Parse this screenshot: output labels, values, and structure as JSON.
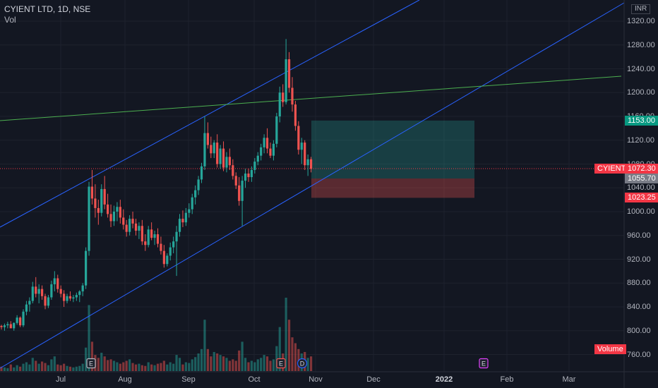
{
  "header": {
    "title": "CYIENT LTD, 1D, NSE",
    "volume_label": "Vol"
  },
  "currency": "INR",
  "price_axis": {
    "ticks": [
      "1320.00",
      "1280.00",
      "1240.00",
      "1200.00",
      "1160.00",
      "1120.00",
      "1080.00",
      "1040.00",
      "1000.00",
      "960.00",
      "920.00",
      "880.00",
      "840.00",
      "800.00",
      "760.00"
    ],
    "tick_values": [
      1320,
      1280,
      1240,
      1200,
      1160,
      1120,
      1080,
      1040,
      1000,
      960,
      920,
      880,
      840,
      800,
      760
    ]
  },
  "time_axis": {
    "labels": [
      "Jul",
      "Aug",
      "Sep",
      "Oct",
      "Nov",
      "Dec",
      "2022",
      "Feb",
      "Mar"
    ],
    "bold": [
      false,
      false,
      false,
      false,
      false,
      false,
      true,
      false,
      false
    ]
  },
  "price_tags": {
    "target": {
      "label": "1153.00",
      "value": 1153.0,
      "color": "#089981"
    },
    "symbol": {
      "label": "CYIENT",
      "color": "#f23645"
    },
    "last": {
      "label": "1072.30",
      "value": 1072.3,
      "color": "#f23645"
    },
    "entry": {
      "label": "1055.70",
      "value": 1055.7,
      "color": "#787b86"
    },
    "stop": {
      "label": "1023.25",
      "value": 1023.25,
      "color": "#f23645"
    }
  },
  "volume_tag": {
    "label": "Volume",
    "color": "#f23645"
  },
  "event_markers": [
    {
      "label": "E",
      "type": "earnings"
    },
    {
      "label": "E",
      "type": "earnings"
    },
    {
      "label": "D",
      "type": "dividend"
    },
    {
      "label": "E",
      "type": "earnings-upcoming"
    }
  ],
  "colors": {
    "background": "#131722",
    "up": "#26a69a",
    "down": "#ef5350",
    "channel": "#2962ff",
    "trend": "#4caf50"
  },
  "chart_data": {
    "type": "candlestick",
    "symbol": "CYIENT LTD",
    "interval": "1D",
    "exchange": "NSE",
    "candles": [
      [
        808,
        810,
        802,
        806
      ],
      [
        806,
        812,
        800,
        809
      ],
      [
        809,
        815,
        804,
        811
      ],
      [
        811,
        816,
        806,
        804
      ],
      [
        804,
        814,
        800,
        813
      ],
      [
        813,
        826,
        810,
        822
      ],
      [
        822,
        824,
        806,
        809
      ],
      [
        809,
        836,
        806,
        832
      ],
      [
        832,
        850,
        826,
        844
      ],
      [
        844,
        856,
        832,
        850
      ],
      [
        850,
        882,
        846,
        874
      ],
      [
        874,
        890,
        856,
        862
      ],
      [
        862,
        878,
        846,
        870
      ],
      [
        870,
        876,
        852,
        858
      ],
      [
        858,
        862,
        836,
        842
      ],
      [
        842,
        860,
        838,
        856
      ],
      [
        856,
        884,
        852,
        878
      ],
      [
        878,
        900,
        866,
        888
      ],
      [
        888,
        894,
        864,
        870
      ],
      [
        870,
        876,
        856,
        862
      ],
      [
        862,
        868,
        840,
        850
      ],
      [
        850,
        862,
        846,
        858
      ],
      [
        858,
        866,
        850,
        854
      ],
      [
        854,
        860,
        848,
        856
      ],
      [
        856,
        864,
        850,
        860
      ],
      [
        860,
        868,
        848,
        866
      ],
      [
        866,
        880,
        858,
        876
      ],
      [
        876,
        940,
        870,
        934
      ],
      [
        934,
        1050,
        926,
        1042
      ],
      [
        1042,
        1070,
        1012,
        1022
      ],
      [
        1022,
        1046,
        990,
        1006
      ],
      [
        1006,
        1020,
        978,
        998
      ],
      [
        998,
        1046,
        992,
        1038
      ],
      [
        1038,
        1060,
        1004,
        1012
      ],
      [
        1012,
        1030,
        990,
        996
      ],
      [
        996,
        1012,
        974,
        984
      ],
      [
        984,
        1010,
        976,
        1000
      ],
      [
        1000,
        1016,
        984,
        1008
      ],
      [
        1008,
        1020,
        980,
        990
      ],
      [
        990,
        1004,
        970,
        978
      ],
      [
        978,
        986,
        958,
        966
      ],
      [
        966,
        994,
        960,
        988
      ],
      [
        988,
        1000,
        972,
        980
      ],
      [
        980,
        988,
        960,
        968
      ],
      [
        968,
        982,
        954,
        976
      ],
      [
        976,
        986,
        944,
        950
      ],
      [
        950,
        962,
        934,
        944
      ],
      [
        944,
        976,
        940,
        970
      ],
      [
        970,
        982,
        952,
        956
      ],
      [
        956,
        968,
        944,
        962
      ],
      [
        962,
        972,
        940,
        946
      ],
      [
        946,
        958,
        928,
        934
      ],
      [
        934,
        944,
        906,
        912
      ],
      [
        912,
        930,
        908,
        926
      ],
      [
        926,
        948,
        918,
        940
      ],
      [
        940,
        958,
        930,
        950
      ],
      [
        950,
        976,
        892,
        966
      ],
      [
        966,
        996,
        958,
        988
      ],
      [
        988,
        1002,
        974,
        982
      ],
      [
        982,
        1006,
        976,
        998
      ],
      [
        998,
        1014,
        990,
        1004
      ],
      [
        1004,
        1030,
        996,
        1024
      ],
      [
        1024,
        1044,
        1012,
        1036
      ],
      [
        1036,
        1060,
        1028,
        1054
      ],
      [
        1054,
        1082,
        1048,
        1076
      ],
      [
        1076,
        1160,
        1070,
        1132
      ],
      [
        1132,
        1150,
        1106,
        1112
      ],
      [
        1112,
        1126,
        1090,
        1098
      ],
      [
        1098,
        1120,
        1090,
        1116
      ],
      [
        1116,
        1130,
        1074,
        1080
      ],
      [
        1080,
        1112,
        1072,
        1106
      ],
      [
        1106,
        1118,
        1068,
        1074
      ],
      [
        1074,
        1100,
        1066,
        1092
      ],
      [
        1092,
        1106,
        1070,
        1078
      ],
      [
        1078,
        1088,
        1054,
        1060
      ],
      [
        1060,
        1066,
        1038,
        1044
      ],
      [
        1044,
        1058,
        1010,
        1018
      ],
      [
        1018,
        1060,
        976,
        1052
      ],
      [
        1052,
        1072,
        1040,
        1064
      ],
      [
        1064,
        1072,
        1050,
        1058
      ],
      [
        1058,
        1076,
        1050,
        1070
      ],
      [
        1070,
        1090,
        1064,
        1084
      ],
      [
        1084,
        1100,
        1078,
        1094
      ],
      [
        1094,
        1114,
        1086,
        1108
      ],
      [
        1108,
        1130,
        1098,
        1124
      ],
      [
        1124,
        1140,
        1098,
        1106
      ],
      [
        1106,
        1116,
        1090,
        1094
      ],
      [
        1094,
        1120,
        1086,
        1114
      ],
      [
        1114,
        1166,
        1108,
        1160
      ],
      [
        1160,
        1210,
        1150,
        1200
      ],
      [
        1200,
        1214,
        1176,
        1184
      ],
      [
        1184,
        1290,
        1180,
        1256
      ],
      [
        1256,
        1268,
        1200,
        1208
      ],
      [
        1208,
        1226,
        1168,
        1180
      ],
      [
        1180,
        1186,
        1136,
        1144
      ],
      [
        1144,
        1152,
        1096,
        1104
      ],
      [
        1104,
        1124,
        1080,
        1116
      ],
      [
        1116,
        1120,
        1070,
        1078
      ],
      [
        1078,
        1096,
        1060,
        1088
      ],
      [
        1088,
        1092,
        1066,
        1072
      ]
    ],
    "volume": [
      [
        6,
        0
      ],
      [
        5,
        1
      ],
      [
        4,
        1
      ],
      [
        9,
        0
      ],
      [
        5,
        1
      ],
      [
        8,
        1
      ],
      [
        6,
        0
      ],
      [
        10,
        1
      ],
      [
        12,
        1
      ],
      [
        9,
        1
      ],
      [
        18,
        1
      ],
      [
        14,
        0
      ],
      [
        10,
        1
      ],
      [
        13,
        0
      ],
      [
        11,
        0
      ],
      [
        8,
        1
      ],
      [
        16,
        1
      ],
      [
        20,
        1
      ],
      [
        9,
        0
      ],
      [
        8,
        0
      ],
      [
        10,
        0
      ],
      [
        7,
        1
      ],
      [
        6,
        0
      ],
      [
        5,
        1
      ],
      [
        6,
        1
      ],
      [
        7,
        1
      ],
      [
        10,
        1
      ],
      [
        32,
        1
      ],
      [
        90,
        1
      ],
      [
        40,
        0
      ],
      [
        22,
        0
      ],
      [
        18,
        0
      ],
      [
        25,
        1
      ],
      [
        20,
        0
      ],
      [
        15,
        0
      ],
      [
        16,
        0
      ],
      [
        14,
        1
      ],
      [
        12,
        1
      ],
      [
        10,
        0
      ],
      [
        12,
        0
      ],
      [
        14,
        0
      ],
      [
        16,
        1
      ],
      [
        11,
        0
      ],
      [
        9,
        0
      ],
      [
        10,
        1
      ],
      [
        8,
        0
      ],
      [
        7,
        0
      ],
      [
        12,
        1
      ],
      [
        9,
        0
      ],
      [
        8,
        1
      ],
      [
        10,
        0
      ],
      [
        11,
        0
      ],
      [
        14,
        0
      ],
      [
        9,
        1
      ],
      [
        12,
        1
      ],
      [
        10,
        1
      ],
      [
        22,
        1
      ],
      [
        18,
        1
      ],
      [
        9,
        0
      ],
      [
        12,
        1
      ],
      [
        11,
        1
      ],
      [
        16,
        1
      ],
      [
        19,
        1
      ],
      [
        24,
        1
      ],
      [
        30,
        1
      ],
      [
        70,
        1
      ],
      [
        30,
        0
      ],
      [
        20,
        0
      ],
      [
        26,
        1
      ],
      [
        24,
        0
      ],
      [
        22,
        1
      ],
      [
        20,
        0
      ],
      [
        18,
        1
      ],
      [
        14,
        0
      ],
      [
        16,
        0
      ],
      [
        14,
        0
      ],
      [
        28,
        0
      ],
      [
        40,
        1
      ],
      [
        18,
        1
      ],
      [
        12,
        0
      ],
      [
        14,
        1
      ],
      [
        12,
        1
      ],
      [
        16,
        1
      ],
      [
        18,
        1
      ],
      [
        22,
        1
      ],
      [
        20,
        0
      ],
      [
        14,
        0
      ],
      [
        16,
        1
      ],
      [
        34,
        1
      ],
      [
        60,
        1
      ],
      [
        24,
        0
      ],
      [
        100,
        1
      ],
      [
        70,
        0
      ],
      [
        46,
        0
      ],
      [
        38,
        0
      ],
      [
        30,
        0
      ],
      [
        24,
        1
      ],
      [
        26,
        0
      ],
      [
        18,
        1
      ],
      [
        20,
        0
      ]
    ],
    "y_axis": {
      "min": 740,
      "max": 1340,
      "label": "INR"
    },
    "x_axis": {
      "labels": [
        "Jul",
        "Aug",
        "Sep",
        "Oct",
        "Nov",
        "Dec",
        "2022",
        "Feb",
        "Mar"
      ]
    },
    "position": {
      "entry": 1055.7,
      "target": 1153.0,
      "stop": 1023.25
    },
    "last_price": 1072.3,
    "grid": true
  }
}
